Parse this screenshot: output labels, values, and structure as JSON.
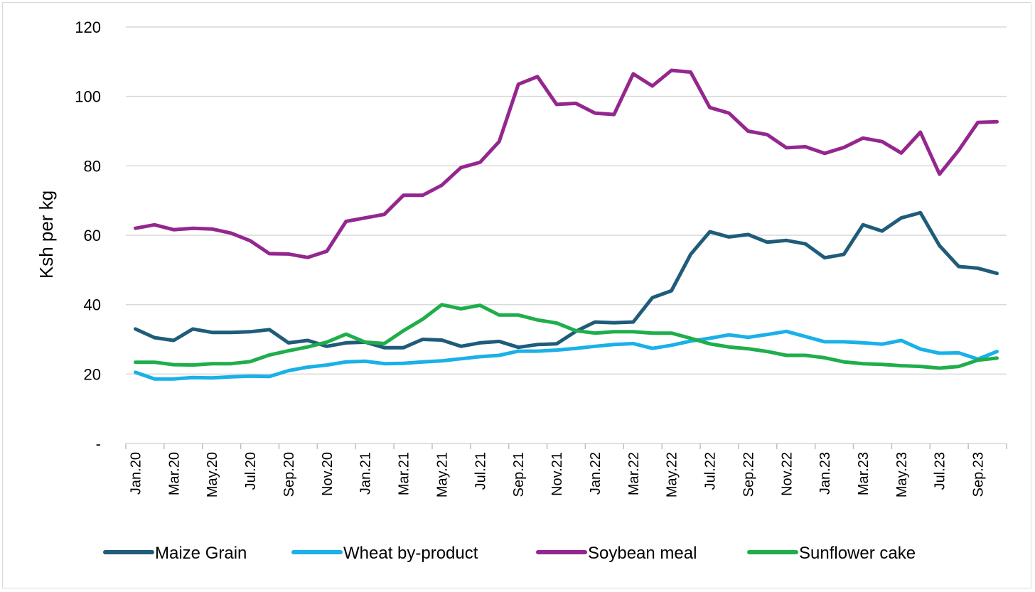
{
  "chart_data": {
    "type": "line",
    "ylabel": "Ksh per kg",
    "xlabel": "",
    "ylim": [
      0,
      120
    ],
    "yticks": [
      0,
      20,
      40,
      60,
      80,
      100,
      120
    ],
    "ytick_labels": [
      "-",
      "20",
      "40",
      "60",
      "80",
      "100",
      "120"
    ],
    "grid": true,
    "legend_position": "bottom",
    "x": [
      "Jan.20",
      "Feb.20",
      "Mar.20",
      "Apr.20",
      "May.20",
      "Jun.20",
      "Jul.20",
      "Aug.20",
      "Sep.20",
      "Oct.20",
      "Nov.20",
      "Dec.20",
      "Jan.21",
      "Feb.21",
      "Mar.21",
      "Apr.21",
      "May.21",
      "Jun.21",
      "Jul.21",
      "Aug.21",
      "Sep.21",
      "Oct.21",
      "Nov.21",
      "Dec.21",
      "Jan.22",
      "Feb.22",
      "Mar.22",
      "Apr.22",
      "May.22",
      "Jun.22",
      "Jul.22",
      "Aug.22",
      "Sep.22",
      "Oct.22",
      "Nov.22",
      "Dec.22",
      "Jan.23",
      "Feb.23",
      "Mar.23",
      "Apr.23",
      "May.23",
      "Jun.23",
      "Jul.23",
      "Aug.23",
      "Sep.23",
      "Oct.23"
    ],
    "x_tick_labels": [
      "Jan.20",
      "Mar.20",
      "May.20",
      "Jul.20",
      "Sep.20",
      "Nov.20",
      "Jan.21",
      "Mar.21",
      "May.21",
      "Jul.21",
      "Sep.21",
      "Nov.21",
      "Jan.22",
      "Mar.22",
      "May.22",
      "Jul.22",
      "Sep.22",
      "Nov.22",
      "Jan.23",
      "Mar.23",
      "May.23",
      "Jul.23",
      "Sep.23"
    ],
    "series": [
      {
        "name": "Maize Grain",
        "color": "#1f5c7a",
        "values": [
          33,
          30.5,
          29.7,
          33,
          32,
          32,
          32.2,
          32.8,
          29,
          29.7,
          28,
          29,
          29.2,
          27.6,
          27.6,
          30,
          29.8,
          28,
          29,
          29.4,
          27.7,
          28.5,
          28.7,
          32.3,
          35,
          34.8,
          35,
          42,
          44,
          54.5,
          61,
          59.5,
          60.2,
          58,
          58.5,
          57.5,
          53.5,
          54.5,
          63,
          61.2,
          65,
          66.5,
          57,
          51,
          50.5,
          49
        ]
      },
      {
        "name": "Wheat by-product",
        "color": "#1ab0e8",
        "values": [
          20.5,
          18.6,
          18.6,
          19,
          18.9,
          19.2,
          19.4,
          19.3,
          21,
          22,
          22.6,
          23.5,
          23.7,
          23,
          23.1,
          23.5,
          23.8,
          24.4,
          25,
          25.4,
          26.6,
          26.6,
          26.9,
          27.4,
          28,
          28.5,
          28.8,
          27.4,
          28.3,
          29.5,
          30.3,
          31.3,
          30.6,
          31.4,
          32.3,
          30.8,
          29.3,
          29.3,
          29,
          28.6,
          29.7,
          27.2,
          26,
          26.1,
          24.3,
          26.5
        ]
      },
      {
        "name": "Soybean meal",
        "color": "#94278f",
        "values": [
          62,
          63,
          61.6,
          62,
          61.8,
          60.6,
          58.4,
          54.7,
          54.6,
          53.6,
          55.4,
          64,
          65,
          66,
          71.5,
          71.5,
          74.4,
          79.5,
          81,
          87,
          103.5,
          105.7,
          97.7,
          98,
          95.2,
          94.8,
          106.5,
          103,
          107.5,
          107,
          96.8,
          95.2,
          90,
          89,
          85.2,
          85.5,
          83.6,
          85.3,
          88,
          87,
          83.7,
          89.7,
          77.6,
          84.5,
          92.5,
          92.7
        ]
      },
      {
        "name": "Sunflower cake",
        "color": "#1fae4b",
        "values": [
          23.4,
          23.4,
          22.7,
          22.6,
          23,
          23,
          23.6,
          25.5,
          26.7,
          27.8,
          29.2,
          31.5,
          29.2,
          28.8,
          32.5,
          35.8,
          40,
          38.8,
          39.8,
          37,
          37,
          35.6,
          34.7,
          32.5,
          31.8,
          32.2,
          32.2,
          31.8,
          31.8,
          30.3,
          28.7,
          27.8,
          27.3,
          26.5,
          25.4,
          25.4,
          24.7,
          23.5,
          23,
          22.8,
          22.4,
          22.2,
          21.7,
          22.2,
          24,
          24.6
        ]
      }
    ]
  }
}
